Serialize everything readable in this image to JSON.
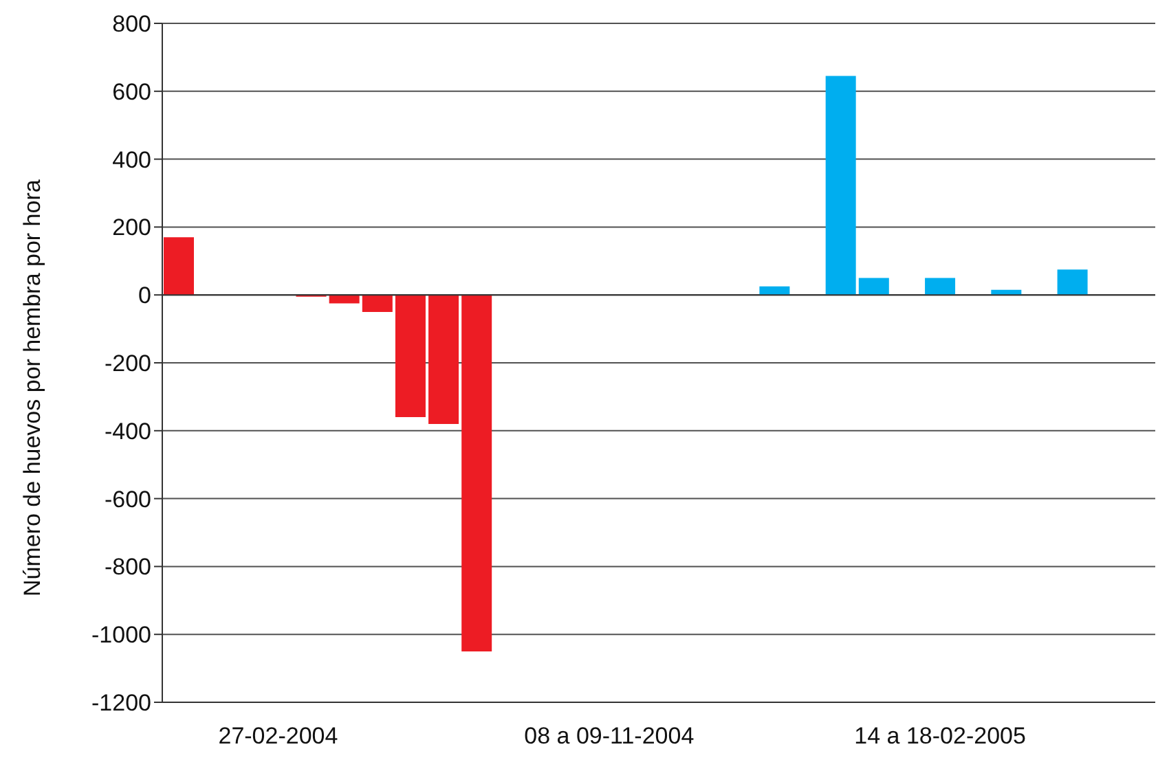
{
  "chart_data": {
    "type": "bar",
    "ylabel": "Número de huevos por hembra por hora",
    "categories": [
      null,
      null,
      null,
      "27-02-2004",
      null,
      null,
      null,
      null,
      null,
      null,
      null,
      null,
      null,
      "08 a 09-11-2004",
      null,
      null,
      null,
      null,
      null,
      null,
      null,
      null,
      null,
      "14 a 18-02-2005",
      null,
      null,
      null,
      null,
      null,
      null
    ],
    "values": [
      170,
      null,
      null,
      null,
      -5,
      -25,
      -50,
      -360,
      -380,
      -1050,
      null,
      null,
      null,
      null,
      null,
      null,
      null,
      null,
      25,
      null,
      645,
      50,
      null,
      50,
      null,
      15,
      null,
      75,
      null,
      null
    ],
    "colors": [
      "#ed1c24",
      "#ed1c24",
      "#ed1c24",
      "#ed1c24",
      "#ed1c24",
      "#ed1c24",
      "#ed1c24",
      "#ed1c24",
      "#ed1c24",
      "#ed1c24",
      "#ed1c24",
      "#ed1c24",
      "#ed1c24",
      "#ed1c24",
      "#ed1c24",
      "#ed1c24",
      "#ed1c24",
      "#ed1c24",
      "#00aeef",
      "#00aeef",
      "#00aeef",
      "#00aeef",
      "#00aeef",
      "#00aeef",
      "#00aeef",
      "#00aeef",
      "#00aeef",
      "#00aeef",
      "#00aeef",
      "#00aeef"
    ],
    "ylim": [
      -1200,
      800
    ],
    "yticks": [
      -1200,
      -1000,
      -800,
      -600,
      -400,
      -200,
      0,
      200,
      400,
      600,
      800
    ],
    "grid": "y"
  }
}
